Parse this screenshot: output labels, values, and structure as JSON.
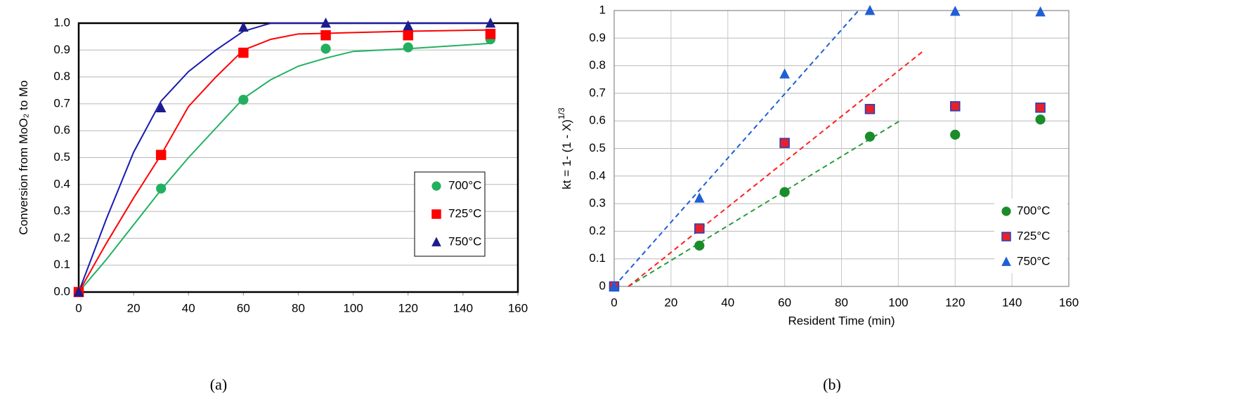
{
  "chart_data": [
    {
      "type": "scatter",
      "caption": "(a)",
      "ylabel": "Conversion  from MoO₂ to Mo",
      "xlim": [
        0,
        160
      ],
      "ylim": [
        0,
        1
      ],
      "xticks": [
        0,
        20,
        40,
        60,
        80,
        100,
        120,
        140,
        160
      ],
      "yticks": [
        {
          "value": 0,
          "label": "0.0"
        },
        0.1,
        0.2,
        0.3,
        0.4,
        0.5,
        0.6,
        0.7,
        0.8,
        0.9,
        {
          "value": 1,
          "label": "1.0"
        }
      ],
      "grid": "y",
      "legend": "lower right",
      "x": [
        0,
        30,
        60,
        90,
        120,
        150
      ],
      "series": [
        {
          "name": "700°C",
          "color": "#22b060",
          "marker": "circle",
          "values": [
            0,
            0.385,
            0.715,
            0.905,
            0.91,
            0.94
          ]
        },
        {
          "name": "725°C",
          "color": "#ff0000",
          "marker": "square",
          "values": [
            0,
            0.51,
            0.89,
            0.955,
            0.955,
            0.96
          ]
        },
        {
          "name": "750°C",
          "color": "#1c1c8c",
          "marker": "triangle",
          "values": [
            0,
            0.685,
            0.985,
            1.0,
            0.99,
            1.0
          ]
        }
      ],
      "fits": [
        {
          "color": "#22b060",
          "dashed": false,
          "x": [
            0,
            10,
            20,
            30,
            40,
            50,
            60,
            70,
            80,
            90,
            100,
            120,
            150
          ],
          "values": [
            0,
            0.12,
            0.25,
            0.38,
            0.5,
            0.61,
            0.72,
            0.79,
            0.84,
            0.87,
            0.895,
            0.905,
            0.925
          ]
        },
        {
          "color": "#ff0000",
          "dashed": false,
          "x": [
            0,
            10,
            20,
            30,
            40,
            50,
            60,
            70,
            80,
            90,
            100,
            120,
            150
          ],
          "values": [
            0,
            0.18,
            0.35,
            0.51,
            0.69,
            0.8,
            0.9,
            0.94,
            0.96,
            0.962,
            0.965,
            0.97,
            0.975
          ]
        },
        {
          "color": "#1a1ab0",
          "dashed": false,
          "x": [
            0,
            10,
            20,
            30,
            40,
            50,
            60,
            70,
            80,
            90,
            100,
            120,
            150
          ],
          "values": [
            0,
            0.27,
            0.52,
            0.71,
            0.82,
            0.9,
            0.97,
            1.0,
            1.0,
            1.0,
            1.0,
            1.0,
            1.0
          ]
        }
      ]
    },
    {
      "type": "scatter",
      "caption": "(b)",
      "xlabel": "Resident Time (min)",
      "ylabel": "kt = 1- (1 - X)",
      "ylabel_superscript": "1/3",
      "xlim": [
        0,
        160
      ],
      "ylim": [
        0,
        1
      ],
      "xticks": [
        0,
        20,
        40,
        60,
        80,
        100,
        120,
        140,
        160
      ],
      "yticks": [
        0,
        0.1,
        0.2,
        0.3,
        0.4,
        0.5,
        0.6,
        0.7,
        0.8,
        0.9,
        1
      ],
      "grid": "both",
      "legend": "lower right",
      "x": [
        0,
        30,
        60,
        90,
        120,
        150
      ],
      "series": [
        {
          "name": "700°C",
          "color": "#1a8c2a",
          "marker": "circle",
          "values": [
            0,
            0.148,
            0.342,
            0.543,
            0.55,
            0.605
          ]
        },
        {
          "name": "725°C",
          "color": "#e8202a",
          "edgecolor": "#2040c0",
          "marker": "square",
          "values": [
            0,
            0.21,
            0.52,
            0.643,
            0.653,
            0.648
          ]
        },
        {
          "name": "750°C",
          "color": "#1f5fd6",
          "marker": "triangle",
          "values": [
            0,
            0.32,
            0.77,
            1.0,
            0.997,
            0.995
          ]
        }
      ],
      "fits": [
        {
          "color": "#2a9a3a",
          "dashed": true,
          "x": [
            5,
            101
          ],
          "values": [
            0,
            0.603
          ]
        },
        {
          "color": "#ff2020",
          "dashed": true,
          "x": [
            5,
            109
          ],
          "values": [
            0,
            0.855
          ]
        },
        {
          "color": "#1f5fd6",
          "dashed": true,
          "x": [
            0,
            86
          ],
          "values": [
            0,
            1.0
          ]
        }
      ]
    }
  ]
}
